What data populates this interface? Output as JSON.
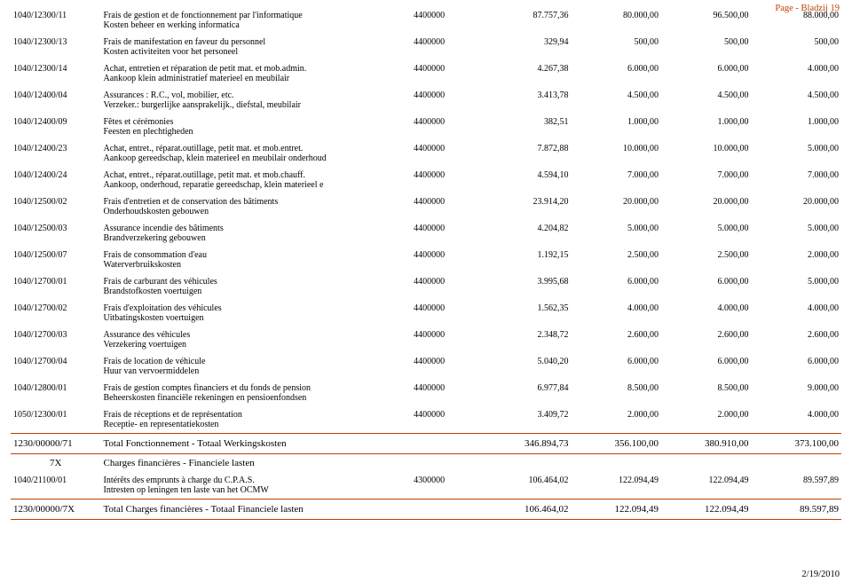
{
  "pageLabel": "Page - Bladzij  19",
  "footerDate": "2/19/2010",
  "rows": [
    {
      "code": "1040/12300/11",
      "l1": "Frais de gestion et de fonctionnement par l'informatique",
      "l2": "Kosten beheer en werking informatica",
      "acct": "4400000",
      "v1": "87.757,36",
      "v2": "80.000,00",
      "v3": "96.500,00",
      "v4": "88.000,00"
    },
    {
      "code": "1040/12300/13",
      "l1": "Frais de manifestation en faveur du personnel",
      "l2": "Kosten activiteiten voor het personeel",
      "acct": "4400000",
      "v1": "329,94",
      "v2": "500,00",
      "v3": "500,00",
      "v4": "500,00"
    },
    {
      "code": "1040/12300/14",
      "l1": "Achat, entretien et réparation de petit mat. et mob.admin.",
      "l2": "Aankoop klein administratief materieel en meubilair",
      "acct": "4400000",
      "v1": "4.267,38",
      "v2": "6.000,00",
      "v3": "6.000,00",
      "v4": "4.000,00"
    },
    {
      "code": "1040/12400/04",
      "l1": "Assurances : R.C., vol, mobilier, etc.",
      "l2": "Verzeker.: burgerlijke aansprakelijk., diefstal, meubilair",
      "acct": "4400000",
      "v1": "3.413,78",
      "v2": "4.500,00",
      "v3": "4.500,00",
      "v4": "4.500,00"
    },
    {
      "code": "1040/12400/09",
      "l1": "Fêtes et cérémonies",
      "l2": "Feesten en plechtigheden",
      "acct": "4400000",
      "v1": "382,51",
      "v2": "1.000,00",
      "v3": "1.000,00",
      "v4": "1.000,00"
    },
    {
      "code": "1040/12400/23",
      "l1": "Achat, entret., réparat.outillage, petit mat. et mob.entret.",
      "l2": "Aankoop gereedschap, klein materieel en meubilair onderhoud",
      "acct": "4400000",
      "v1": "7.872,88",
      "v2": "10.000,00",
      "v3": "10.000,00",
      "v4": "5.000,00"
    },
    {
      "code": "1040/12400/24",
      "l1": "Achat, entret., réparat.outillage, petit mat. et mob.chauff.",
      "l2": "Aankoop, onderhoud, reparatie gereedschap, klein materieel e",
      "acct": "4400000",
      "v1": "4.594,10",
      "v2": "7.000,00",
      "v3": "7.000,00",
      "v4": "7.000,00"
    },
    {
      "code": "1040/12500/02",
      "l1": "Frais d'entretien et de conservation des bâtiments",
      "l2": "Onderhoudskosten gebouwen",
      "acct": "4400000",
      "v1": "23.914,20",
      "v2": "20.000,00",
      "v3": "20.000,00",
      "v4": "20.000,00"
    },
    {
      "code": "1040/12500/03",
      "l1": "Assurance incendie des bâtiments",
      "l2": "Brandverzekering gebouwen",
      "acct": "4400000",
      "v1": "4.204,82",
      "v2": "5.000,00",
      "v3": "5.000,00",
      "v4": "5.000,00"
    },
    {
      "code": "1040/12500/07",
      "l1": "Frais de consommation d'eau",
      "l2": "Waterverbruikskosten",
      "acct": "4400000",
      "v1": "1.192,15",
      "v2": "2.500,00",
      "v3": "2.500,00",
      "v4": "2.000,00"
    },
    {
      "code": "1040/12700/01",
      "l1": "Frais de carburant des véhicules",
      "l2": "Brandstofkosten voertuigen",
      "acct": "4400000",
      "v1": "3.995,68",
      "v2": "6.000,00",
      "v3": "6.000,00",
      "v4": "5.000,00"
    },
    {
      "code": "1040/12700/02",
      "l1": "Frais d'exploitation des véhicules",
      "l2": "Uitbatingskosten voertuigen",
      "acct": "4400000",
      "v1": "1.562,35",
      "v2": "4.000,00",
      "v3": "4.000,00",
      "v4": "4.000,00"
    },
    {
      "code": "1040/12700/03",
      "l1": "Assurance des véhicules",
      "l2": "Verzekering voertuigen",
      "acct": "4400000",
      "v1": "2.348,72",
      "v2": "2.600,00",
      "v3": "2.600,00",
      "v4": "2.600,00"
    },
    {
      "code": "1040/12700/04",
      "l1": "Frais de location de véhicule",
      "l2": "Huur van vervoermiddelen",
      "acct": "4400000",
      "v1": "5.040,20",
      "v2": "6.000,00",
      "v3": "6.000,00",
      "v4": "6.000,00"
    },
    {
      "code": "1040/12800/01",
      "l1": "Frais de gestion comptes financiers et du fonds de pension",
      "l2": "Beheerskosten financiële rekeningen en pensioenfondsen",
      "acct": "4400000",
      "v1": "6.977,84",
      "v2": "8.500,00",
      "v3": "8.500,00",
      "v4": "9.000,00"
    },
    {
      "code": "1050/12300/01",
      "l1": "Frais de réceptions et de représentation",
      "l2": "Receptie- en representatiekosten",
      "acct": "4400000",
      "v1": "3.409,72",
      "v2": "2.000,00",
      "v3": "2.000,00",
      "v4": "4.000,00"
    }
  ],
  "total1": {
    "code": "1230/00000/71",
    "l1": "Total Fonctionnement - Totaal Werkingskosten",
    "l2": "",
    "acct": "",
    "v1": "346.894,73",
    "v2": "356.100,00",
    "v3": "380.910,00",
    "v4": "373.100,00"
  },
  "sectionHead": {
    "code": "7X",
    "l1": "Charges financières - Financiele lasten"
  },
  "row7x": {
    "code": "1040/21100/01",
    "l1": "Intérêts des emprunts à charge du C.P.A.S.",
    "l2": "Intresten op leningen ten laste van het OCMW",
    "acct": "4300000",
    "v1": "106.464,02",
    "v2": "122.094,49",
    "v3": "122.094,49",
    "v4": "89.597,89"
  },
  "total2": {
    "code": "1230/00000/7X",
    "l1": "Total Charges financières - Totaal Financiele lasten",
    "l2": "",
    "acct": "",
    "v1": "106.464,02",
    "v2": "122.094,49",
    "v3": "122.094,49",
    "v4": "89.597,89"
  }
}
